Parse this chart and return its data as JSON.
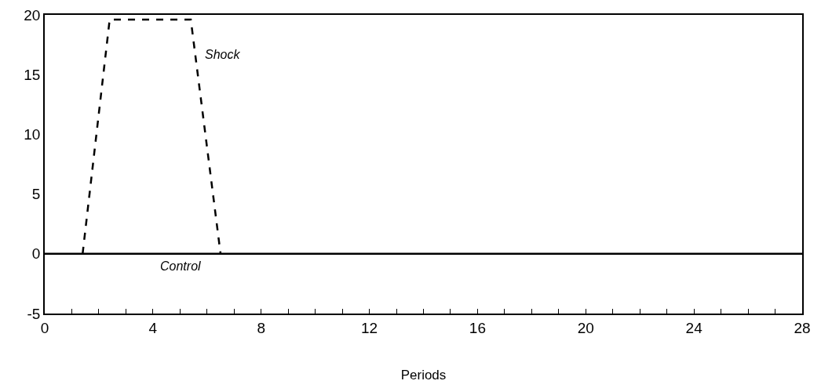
{
  "chart_data": {
    "type": "line",
    "xlabel": "Periods",
    "xlim": [
      0,
      28
    ],
    "xticks": [
      0,
      {
        "value": 1,
        "label": null
      },
      {
        "value": 2,
        "label": null
      },
      {
        "value": 3,
        "label": null
      },
      4,
      {
        "value": 5,
        "label": null
      },
      {
        "value": 6,
        "label": null
      },
      {
        "value": 7,
        "label": null
      },
      8,
      {
        "value": 9,
        "label": null
      },
      {
        "value": 10,
        "label": null
      },
      {
        "value": 11,
        "label": null
      },
      12,
      {
        "value": 13,
        "label": null
      },
      {
        "value": 14,
        "label": null
      },
      {
        "value": 15,
        "label": null
      },
      16,
      {
        "value": 17,
        "label": null
      },
      {
        "value": 18,
        "label": null
      },
      {
        "value": 19,
        "label": null
      },
      20,
      {
        "value": 21,
        "label": null
      },
      {
        "value": 22,
        "label": null
      },
      {
        "value": 23,
        "label": null
      },
      24,
      {
        "value": 25,
        "label": null
      },
      {
        "value": 26,
        "label": null
      },
      {
        "value": 27,
        "label": null
      },
      28
    ],
    "ylim": [
      -5,
      20
    ],
    "yticks": [
      -5,
      0,
      5,
      10,
      15,
      20
    ],
    "grid": false,
    "legend": false,
    "marker": "none",
    "series": [
      {
        "name": "Shock",
        "color": "#000000",
        "line_style": "dashed",
        "x": [
          1.4,
          2.4,
          5.4,
          6.5
        ],
        "values": [
          0,
          19.6,
          19.6,
          0
        ]
      },
      {
        "name": "Control",
        "color": "#000000",
        "line_style": "solid",
        "x": [
          0,
          28
        ],
        "values": [
          0,
          0
        ]
      }
    ]
  }
}
